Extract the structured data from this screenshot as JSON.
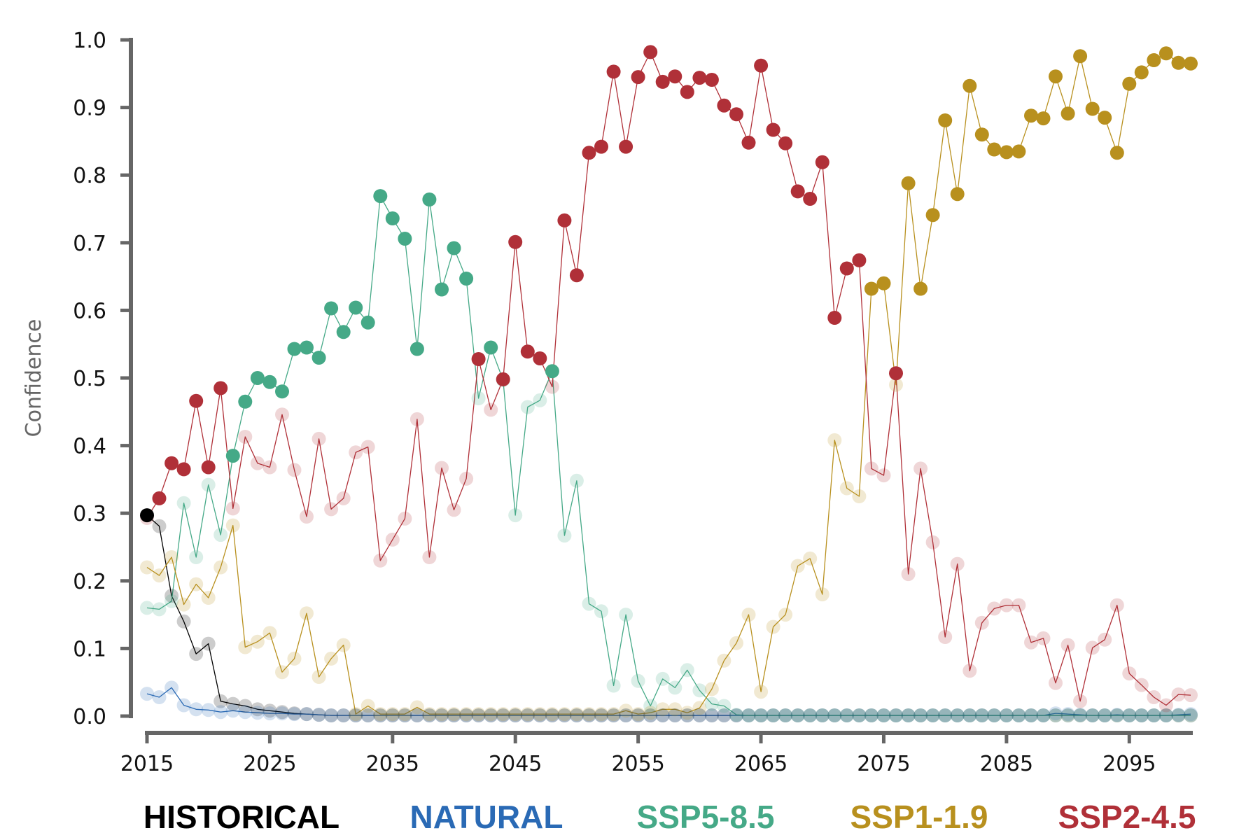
{
  "chart_data": {
    "type": "line",
    "title": "",
    "xlabel": "",
    "ylabel": "Confidence",
    "xlim": [
      2015,
      2100
    ],
    "ylim": [
      0.0,
      1.0
    ],
    "x_ticks": [
      "2015",
      "2025",
      "2035",
      "2045",
      "2055",
      "2065",
      "2075",
      "2085",
      "2095"
    ],
    "y_ticks": [
      "0.0",
      "0.1",
      "0.2",
      "0.3",
      "0.4",
      "0.5",
      "0.6",
      "0.7",
      "0.8",
      "0.9",
      "1.0"
    ],
    "grid": false,
    "legend_position": "bottom",
    "x_start": 2015,
    "x_end": 2100,
    "series": [
      {
        "name": "HISTORICAL",
        "color": "#000000",
        "values": [
          0.297,
          0.281,
          0.178,
          0.14,
          0.092,
          0.107,
          0.022,
          0.018,
          0.015,
          0.01,
          0.008,
          0.006,
          0.004,
          0.003,
          0.002,
          0.001,
          0.001,
          0.001,
          0.001,
          0.001,
          0.001,
          0.001,
          0.001,
          0.001,
          0.001,
          0.001,
          0.001,
          0.001,
          0.001,
          0.001,
          0.001,
          0.001,
          0.001,
          0.001,
          0.001,
          0.001,
          0.001,
          0.001,
          0.001,
          0.001,
          0.001,
          0.001,
          0.001,
          0.001,
          0.001,
          0.001,
          0.001,
          0.001,
          0.001,
          0.001,
          0.001,
          0.001,
          0.001,
          0.001,
          0.001,
          0.001,
          0.001,
          0.001,
          0.001,
          0.001,
          0.001,
          0.001,
          0.001,
          0.001,
          0.001,
          0.001,
          0.001,
          0.001,
          0.001,
          0.001,
          0.001,
          0.001,
          0.001,
          0.001,
          0.001,
          0.001,
          0.001,
          0.001,
          0.001,
          0.001,
          0.001,
          0.001,
          0.001,
          0.001,
          0.001,
          0.001
        ]
      },
      {
        "name": "NATURAL",
        "color": "#2a6ab5",
        "values": [
          0.033,
          0.028,
          0.042,
          0.016,
          0.01,
          0.009,
          0.006,
          0.008,
          0.006,
          0.005,
          0.004,
          0.004,
          0.003,
          0.003,
          0.002,
          0.001,
          0.001,
          0.001,
          0.001,
          0.001,
          0.001,
          0.001,
          0.001,
          0.001,
          0.001,
          0.001,
          0.001,
          0.001,
          0.001,
          0.001,
          0.001,
          0.001,
          0.001,
          0.001,
          0.001,
          0.001,
          0.001,
          0.001,
          0.001,
          0.001,
          0.001,
          0.001,
          0.001,
          0.001,
          0.001,
          0.001,
          0.001,
          0.001,
          0.001,
          0.001,
          0.001,
          0.001,
          0.001,
          0.001,
          0.001,
          0.001,
          0.001,
          0.001,
          0.001,
          0.001,
          0.001,
          0.001,
          0.001,
          0.001,
          0.001,
          0.001,
          0.001,
          0.001,
          0.001,
          0.001,
          0.001,
          0.001,
          0.001,
          0.001,
          0.004,
          0.003,
          0.002,
          0.001,
          0.001,
          0.002,
          0.001,
          0.001,
          0.001,
          0.001,
          0.002,
          0.003
        ]
      },
      {
        "name": "SSP5-8.5",
        "color": "#45a987",
        "values": [
          0.16,
          0.158,
          0.17,
          0.315,
          0.235,
          0.342,
          0.268,
          0.385,
          0.465,
          0.5,
          0.494,
          0.48,
          0.543,
          0.545,
          0.53,
          0.603,
          0.568,
          0.604,
          0.582,
          0.769,
          0.736,
          0.706,
          0.543,
          0.764,
          0.631,
          0.692,
          0.647,
          0.47,
          0.545,
          0.497,
          0.297,
          0.457,
          0.467,
          0.51,
          0.267,
          0.348,
          0.166,
          0.155,
          0.045,
          0.15,
          0.052,
          0.015,
          0.055,
          0.042,
          0.068,
          0.038,
          0.018,
          0.015,
          0.002,
          0.001,
          0.001,
          0.001,
          0.001,
          0.001,
          0.001,
          0.001,
          0.001,
          0.001,
          0.001,
          0.001,
          0.001,
          0.001,
          0.001,
          0.001,
          0.001,
          0.001,
          0.001,
          0.001,
          0.001,
          0.001,
          0.001,
          0.001,
          0.001,
          0.001,
          0.001,
          0.001,
          0.001,
          0.001,
          0.001,
          0.001,
          0.001,
          0.001,
          0.001,
          0.001,
          0.001,
          0.001
        ]
      },
      {
        "name": "SSP1-1.9",
        "color": "#b8901e",
        "values": [
          0.22,
          0.208,
          0.235,
          0.165,
          0.195,
          0.175,
          0.22,
          0.282,
          0.102,
          0.11,
          0.123,
          0.065,
          0.085,
          0.152,
          0.058,
          0.085,
          0.105,
          0.003,
          0.015,
          0.003,
          0.003,
          0.003,
          0.013,
          0.003,
          0.003,
          0.003,
          0.003,
          0.003,
          0.003,
          0.003,
          0.003,
          0.003,
          0.003,
          0.003,
          0.003,
          0.003,
          0.003,
          0.003,
          0.003,
          0.008,
          0.003,
          0.005,
          0.01,
          0.01,
          0.005,
          0.012,
          0.04,
          0.082,
          0.108,
          0.15,
          0.036,
          0.132,
          0.15,
          0.222,
          0.233,
          0.18,
          0.408,
          0.337,
          0.325,
          0.632,
          0.64,
          0.49,
          0.788,
          0.632,
          0.741,
          0.881,
          0.772,
          0.932,
          0.86,
          0.838,
          0.834,
          0.835,
          0.888,
          0.884,
          0.946,
          0.891,
          0.976,
          0.898,
          0.885,
          0.833,
          0.935,
          0.952,
          0.97,
          0.98,
          0.966,
          0.965
        ]
      },
      {
        "name": "SSP2-4.5",
        "color": "#b03038",
        "values": [
          0.293,
          0.322,
          0.374,
          0.365,
          0.466,
          0.368,
          0.485,
          0.307,
          0.413,
          0.374,
          0.368,
          0.446,
          0.364,
          0.295,
          0.41,
          0.306,
          0.322,
          0.39,
          0.398,
          0.23,
          0.261,
          0.292,
          0.439,
          0.235,
          0.367,
          0.305,
          0.351,
          0.528,
          0.453,
          0.498,
          0.701,
          0.539,
          0.529,
          0.487,
          0.733,
          0.652,
          0.833,
          0.842,
          0.953,
          0.842,
          0.945,
          0.982,
          0.938,
          0.946,
          0.923,
          0.944,
          0.941,
          0.903,
          0.89,
          0.848,
          0.962,
          0.867,
          0.847,
          0.776,
          0.765,
          0.819,
          0.589,
          0.662,
          0.674,
          0.366,
          0.356,
          0.507,
          0.21,
          0.366,
          0.257,
          0.117,
          0.225,
          0.067,
          0.138,
          0.159,
          0.164,
          0.164,
          0.109,
          0.115,
          0.049,
          0.105,
          0.022,
          0.101,
          0.113,
          0.164,
          0.063,
          0.046,
          0.028,
          0.016,
          0.032,
          0.031
        ]
      }
    ]
  }
}
